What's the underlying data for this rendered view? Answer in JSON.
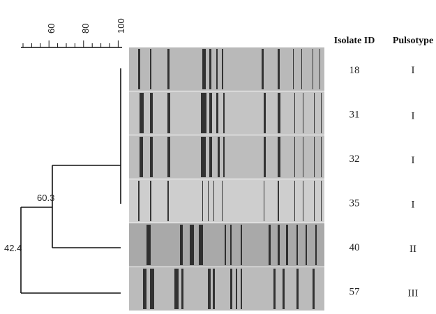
{
  "scale": {
    "ticks": [
      "60",
      "80",
      "100"
    ]
  },
  "nodes": [
    {
      "label": "60.3"
    },
    {
      "label": "42.4"
    }
  ],
  "table": {
    "headers": [
      "Isolate ID",
      "Pulsotype"
    ],
    "rows": [
      [
        "18",
        "I"
      ],
      [
        "31",
        "I"
      ],
      [
        "32",
        "I"
      ],
      [
        "35",
        "I"
      ],
      [
        "40",
        "II"
      ],
      [
        "57",
        "III"
      ]
    ]
  }
}
